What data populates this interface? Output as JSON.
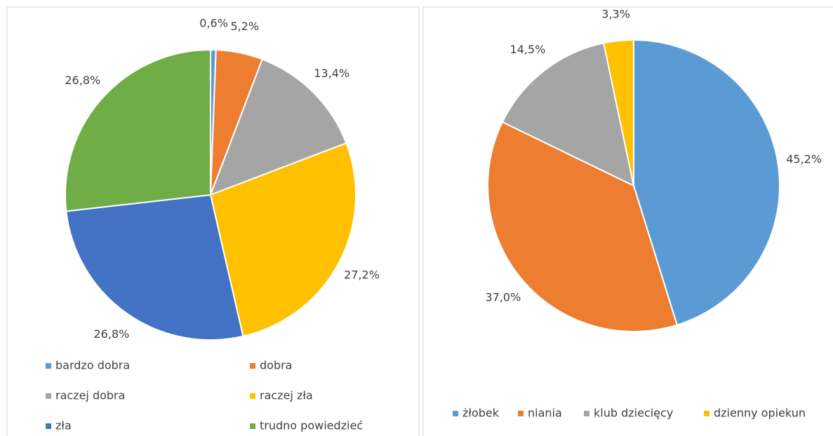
{
  "chart_data": [
    {
      "type": "pie",
      "categories": [
        "bardzo dobra",
        "dobra",
        "raczej dobra",
        "raczej zła",
        "zła",
        "trudno powiedzieć"
      ],
      "values": [
        0.6,
        5.2,
        13.4,
        27.2,
        26.8,
        26.8
      ],
      "value_labels": [
        "0,6%",
        "5,2%",
        "13,4%",
        "27,2%",
        "26,8%",
        "26,8%"
      ],
      "colors": [
        "#5b9bd5",
        "#ed7d31",
        "#a5a5a5",
        "#ffc000",
        "#4472c4",
        "#70ad47"
      ],
      "legend": "bottom"
    },
    {
      "type": "pie",
      "categories": [
        "żłobek",
        "niania",
        "klub dziecięcy",
        "dzienny opiekun"
      ],
      "values": [
        45.2,
        37.0,
        14.5,
        3.3
      ],
      "value_labels": [
        "45,2%",
        "37,0%",
        "14,5%",
        "3,3%"
      ],
      "colors": [
        "#5b9bd5",
        "#ed7d31",
        "#a5a5a5",
        "#ffc000"
      ],
      "legend": "bottom"
    }
  ]
}
